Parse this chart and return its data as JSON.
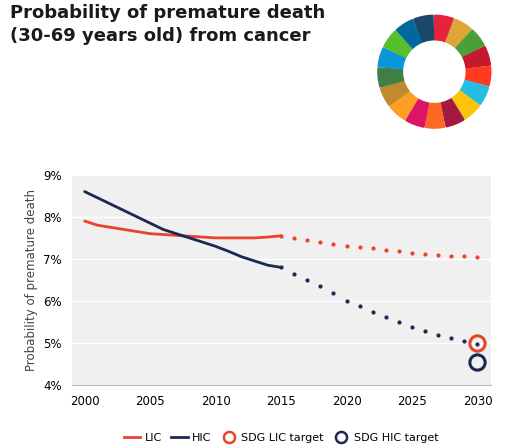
{
  "title_line1": "Probability of premature death",
  "title_line2": "(30-69 years old) from cancer",
  "ylabel": "Probability of premature death",
  "ylim": [
    4,
    9
  ],
  "xlim": [
    1999,
    2031
  ],
  "yticks": [
    4,
    5,
    6,
    7,
    8,
    9
  ],
  "ytick_labels": [
    "4%",
    "5%",
    "6%",
    "7%",
    "8%",
    "9%"
  ],
  "xticks": [
    2000,
    2005,
    2010,
    2015,
    2020,
    2025,
    2030
  ],
  "lic_x": [
    2000,
    2001,
    2002,
    2003,
    2004,
    2005,
    2006,
    2007,
    2008,
    2009,
    2010,
    2011,
    2012,
    2013,
    2014,
    2015
  ],
  "lic_y": [
    7.9,
    7.8,
    7.75,
    7.7,
    7.65,
    7.6,
    7.58,
    7.56,
    7.54,
    7.52,
    7.5,
    7.5,
    7.5,
    7.5,
    7.52,
    7.55
  ],
  "hic_x": [
    2000,
    2001,
    2002,
    2003,
    2004,
    2005,
    2006,
    2007,
    2008,
    2009,
    2010,
    2011,
    2012,
    2013,
    2014,
    2015
  ],
  "hic_y": [
    8.6,
    8.45,
    8.3,
    8.15,
    8.0,
    7.85,
    7.7,
    7.6,
    7.5,
    7.4,
    7.3,
    7.18,
    7.05,
    6.95,
    6.85,
    6.8
  ],
  "lic_dot_x": [
    2015,
    2016,
    2017,
    2018,
    2019,
    2020,
    2021,
    2022,
    2023,
    2024,
    2025,
    2026,
    2027,
    2028,
    2029,
    2030
  ],
  "lic_dot_y": [
    7.55,
    7.5,
    7.45,
    7.4,
    7.35,
    7.3,
    7.28,
    7.26,
    7.22,
    7.18,
    7.15,
    7.12,
    7.1,
    7.08,
    7.06,
    7.05
  ],
  "hic_dot_x": [
    2015,
    2016,
    2017,
    2018,
    2019,
    2020,
    2021,
    2022,
    2023,
    2024,
    2025,
    2026,
    2027,
    2028,
    2029,
    2030
  ],
  "hic_dot_y": [
    6.8,
    6.65,
    6.5,
    6.35,
    6.2,
    6.0,
    5.88,
    5.75,
    5.62,
    5.5,
    5.38,
    5.28,
    5.2,
    5.12,
    5.05,
    4.97
  ],
  "sdg_lic_target_x": 2030,
  "sdg_lic_target_y": 5.0,
  "sdg_hic_target_x": 2030,
  "sdg_hic_target_y": 4.55,
  "lic_color": "#E8442A",
  "hic_color": "#1C2951",
  "bg_color": "#ffffff",
  "plot_bg_color": "#f0f0f0",
  "grid_color": "#ffffff",
  "title_fontsize": 13,
  "axis_fontsize": 8.5,
  "tick_fontsize": 8.5,
  "sdg_colors": [
    "#E5243B",
    "#DDA63A",
    "#4C9F38",
    "#C5192D",
    "#FF3A21",
    "#26BDE2",
    "#FCC30B",
    "#A21942",
    "#FD6925",
    "#DD1367",
    "#FD9D24",
    "#BF8B2E",
    "#3F7E44",
    "#0A97D9",
    "#56C02B",
    "#00689D",
    "#19486A"
  ]
}
